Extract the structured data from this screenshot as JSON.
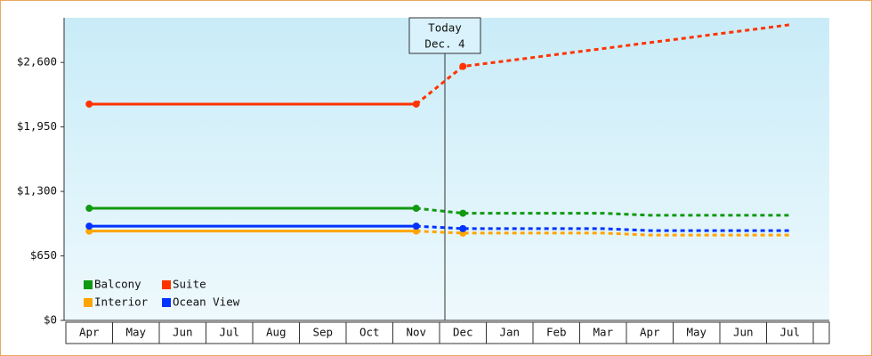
{
  "chart_data": {
    "type": "line",
    "annotation": [
      "Today",
      "Dec. 4"
    ],
    "categories": [
      "Apr",
      "May",
      "Jun",
      "Jul",
      "Aug",
      "Sep",
      "Oct",
      "Nov",
      "Dec",
      "Jan",
      "Feb",
      "Mar",
      "Apr",
      "May",
      "Jun",
      "Jul"
    ],
    "series": [
      {
        "name": "Balcony",
        "color": "#119911",
        "values": [
          1130,
          1130,
          1130,
          1130,
          1130,
          1130,
          1130,
          1130,
          1080,
          1080,
          1080,
          1080,
          1060,
          1060,
          1060,
          1060
        ]
      },
      {
        "name": "Suite",
        "color": "#ff3300",
        "values": [
          2180,
          2180,
          2180,
          2180,
          2180,
          2180,
          2180,
          2180,
          2560,
          2620,
          2680,
          2740,
          2800,
          2860,
          2920,
          2980
        ]
      },
      {
        "name": "Interior",
        "color": "#ffa500",
        "values": [
          900,
          900,
          900,
          900,
          900,
          900,
          900,
          900,
          880,
          880,
          880,
          880,
          860,
          860,
          860,
          860
        ]
      },
      {
        "name": "Ocean View",
        "color": "#0033ff",
        "values": [
          950,
          950,
          950,
          950,
          950,
          950,
          950,
          950,
          925,
          925,
          925,
          925,
          905,
          905,
          905,
          905
        ]
      }
    ],
    "ylim": [
      0,
      3050
    ],
    "yticks": [
      {
        "value": 0,
        "label": "$0"
      },
      {
        "value": 650,
        "label": "$650"
      },
      {
        "value": 1300,
        "label": "$1,300"
      },
      {
        "value": 1950,
        "label": "$1,950"
      },
      {
        "value": 2600,
        "label": "$2,600"
      }
    ],
    "legend": "lower left"
  }
}
